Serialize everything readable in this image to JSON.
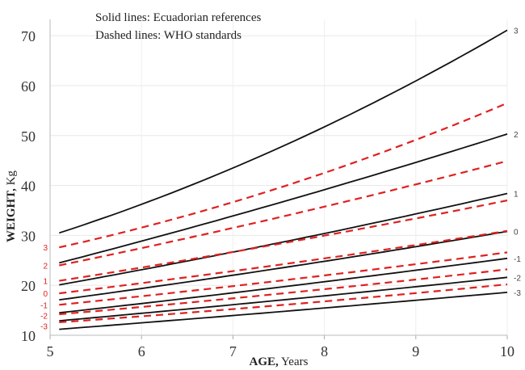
{
  "chart_data": {
    "type": "line",
    "xlabel_bold": "AGE,",
    "xlabel_rest": " Years",
    "ylabel_bold": "WEIGHT,",
    "ylabel_rest": " Kg",
    "xlim": [
      5,
      10
    ],
    "ylim": [
      10,
      75
    ],
    "xticks": [
      5,
      6,
      7,
      8,
      9,
      10
    ],
    "yticks": [
      10,
      20,
      30,
      40,
      50,
      60,
      70
    ],
    "grid": true,
    "annotations": [
      "Solid lines: Ecuadorian references",
      "Dashed lines: WHO standards"
    ],
    "x": [
      5.1,
      7.5,
      10
    ],
    "series": [
      {
        "group": "Ecuadorian",
        "style": "solid",
        "color": "#111111",
        "label": "3",
        "values": [
          30.5,
          47.5,
          71.1
        ]
      },
      {
        "group": "Ecuadorian",
        "style": "solid",
        "color": "#111111",
        "label": "2",
        "values": [
          24.5,
          36.5,
          50.3
        ]
      },
      {
        "group": "Ecuadorian",
        "style": "solid",
        "color": "#111111",
        "label": "1",
        "values": [
          20.1,
          28.5,
          38.4
        ]
      },
      {
        "group": "Ecuadorian",
        "style": "solid",
        "color": "#111111",
        "label": "0",
        "values": [
          17.1,
          23.4,
          30.8
        ]
      },
      {
        "group": "Ecuadorian",
        "style": "solid",
        "color": "#111111",
        "label": "-1",
        "values": [
          14.5,
          19.6,
          25.4
        ]
      },
      {
        "group": "Ecuadorian",
        "style": "solid",
        "color": "#111111",
        "label": "-2",
        "values": [
          12.9,
          17.0,
          21.6
        ]
      },
      {
        "group": "Ecuadorian",
        "style": "solid",
        "color": "#111111",
        "label": "-3",
        "values": [
          11.2,
          14.7,
          18.6
        ]
      },
      {
        "group": "WHO",
        "style": "dashed",
        "color": "#e02020",
        "label": "3",
        "values": [
          27.6,
          39.5,
          56.5
        ]
      },
      {
        "group": "WHO",
        "style": "dashed",
        "color": "#e02020",
        "label": "2",
        "values": [
          24.0,
          33.6,
          44.9
        ]
      },
      {
        "group": "WHO",
        "style": "dashed",
        "color": "#e02020",
        "label": "1",
        "values": [
          20.9,
          28.3,
          37.0
        ]
      },
      {
        "group": "WHO",
        "style": "dashed",
        "color": "#e02020",
        "label": "0",
        "values": [
          18.4,
          24.1,
          30.9
        ]
      },
      {
        "group": "WHO",
        "style": "dashed",
        "color": "#e02020",
        "label": "-1",
        "values": [
          16.1,
          20.9,
          26.6
        ]
      },
      {
        "group": "WHO",
        "style": "dashed",
        "color": "#e02020",
        "label": "-2",
        "values": [
          14.2,
          18.3,
          23.2
        ]
      },
      {
        "group": "WHO",
        "style": "dashed",
        "color": "#e02020",
        "label": "-3",
        "values": [
          12.6,
          16.0,
          20.2
        ]
      }
    ]
  }
}
